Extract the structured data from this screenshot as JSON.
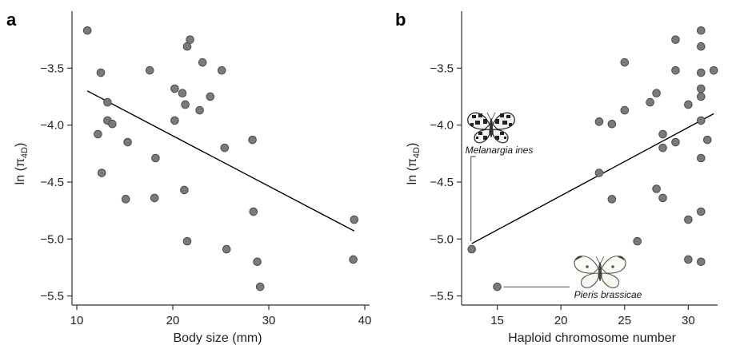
{
  "chart_data": [
    {
      "type": "scatter",
      "panel_label": "a",
      "xlabel": "Body size (mm)",
      "ylabel_base": "ln (π",
      "ylabel_sub": "4D",
      "ylabel_close": ")",
      "xlim": [
        9.5,
        40.5
      ],
      "ylim": [
        -5.58,
        -3.0
      ],
      "xticks": [
        10,
        20,
        30,
        40
      ],
      "yticks": [
        -3.5,
        -4.0,
        -4.5,
        -5.0,
        -5.5
      ],
      "xtick_labels": [
        "10",
        "20",
        "30",
        "40"
      ],
      "ytick_labels": [
        "−3.5",
        "−4.0",
        "−4.5",
        "−5.0",
        "−5.5"
      ],
      "trendline": {
        "x": [
          11.1,
          38.9
        ],
        "y": [
          -3.7,
          -4.93
        ]
      },
      "points": [
        {
          "x": 11.1,
          "y": -3.17
        },
        {
          "x": 12.5,
          "y": -3.54
        },
        {
          "x": 13.2,
          "y": -3.8
        },
        {
          "x": 13.2,
          "y": -3.96
        },
        {
          "x": 13.7,
          "y": -3.99
        },
        {
          "x": 12.2,
          "y": -4.08
        },
        {
          "x": 15.3,
          "y": -4.15
        },
        {
          "x": 12.6,
          "y": -4.42
        },
        {
          "x": 15.1,
          "y": -4.65
        },
        {
          "x": 17.6,
          "y": -3.52
        },
        {
          "x": 18.2,
          "y": -4.29
        },
        {
          "x": 18.1,
          "y": -4.64
        },
        {
          "x": 20.2,
          "y": -3.68
        },
        {
          "x": 20.2,
          "y": -3.96
        },
        {
          "x": 21.0,
          "y": -3.72
        },
        {
          "x": 21.3,
          "y": -3.82
        },
        {
          "x": 21.5,
          "y": -3.31
        },
        {
          "x": 21.8,
          "y": -3.25
        },
        {
          "x": 21.2,
          "y": -4.57
        },
        {
          "x": 21.5,
          "y": -5.02
        },
        {
          "x": 23.1,
          "y": -3.45
        },
        {
          "x": 22.8,
          "y": -3.87
        },
        {
          "x": 23.9,
          "y": -3.75
        },
        {
          "x": 25.1,
          "y": -3.52
        },
        {
          "x": 25.4,
          "y": -4.2
        },
        {
          "x": 25.6,
          "y": -5.09
        },
        {
          "x": 28.3,
          "y": -4.13
        },
        {
          "x": 28.4,
          "y": -4.76
        },
        {
          "x": 28.8,
          "y": -5.2
        },
        {
          "x": 29.1,
          "y": -5.42
        },
        {
          "x": 38.9,
          "y": -4.83
        },
        {
          "x": 38.8,
          "y": -5.18
        }
      ]
    },
    {
      "type": "scatter",
      "panel_label": "b",
      "xlabel": "Haploid chromosome number",
      "ylabel_base": "ln (π",
      "ylabel_sub": "4D",
      "ylabel_close": ")",
      "xlim": [
        12.2,
        32.3
      ],
      "ylim": [
        -5.58,
        -3.0
      ],
      "xticks": [
        15,
        20,
        25,
        30
      ],
      "yticks": [
        -3.5,
        -4.0,
        -4.5,
        -5.0,
        -5.5
      ],
      "xtick_labels": [
        "15",
        "20",
        "25",
        "30"
      ],
      "ytick_labels": [
        "−3.5",
        "−4.0",
        "−4.5",
        "−5.0",
        "−5.5"
      ],
      "trendline": {
        "x": [
          13.0,
          32.0
        ],
        "y": [
          -5.04,
          -3.9
        ]
      },
      "points": [
        {
          "x": 13.0,
          "y": -5.09
        },
        {
          "x": 15.0,
          "y": -5.42
        },
        {
          "x": 23.0,
          "y": -3.97
        },
        {
          "x": 23.0,
          "y": -4.42
        },
        {
          "x": 24.0,
          "y": -3.99
        },
        {
          "x": 24.0,
          "y": -4.65
        },
        {
          "x": 25.0,
          "y": -3.45
        },
        {
          "x": 25.0,
          "y": -3.87
        },
        {
          "x": 26.0,
          "y": -5.02
        },
        {
          "x": 27.0,
          "y": -3.8
        },
        {
          "x": 27.5,
          "y": -3.72
        },
        {
          "x": 27.5,
          "y": -4.56
        },
        {
          "x": 28.0,
          "y": -4.08
        },
        {
          "x": 28.0,
          "y": -4.2
        },
        {
          "x": 28.0,
          "y": -4.64
        },
        {
          "x": 29.0,
          "y": -3.25
        },
        {
          "x": 29.0,
          "y": -3.52
        },
        {
          "x": 29.0,
          "y": -4.15
        },
        {
          "x": 30.0,
          "y": -3.82
        },
        {
          "x": 30.0,
          "y": -4.83
        },
        {
          "x": 30.0,
          "y": -5.18
        },
        {
          "x": 31.0,
          "y": -3.17
        },
        {
          "x": 31.0,
          "y": -3.31
        },
        {
          "x": 31.0,
          "y": -3.54
        },
        {
          "x": 31.0,
          "y": -3.68
        },
        {
          "x": 31.0,
          "y": -3.75
        },
        {
          "x": 31.0,
          "y": -3.96
        },
        {
          "x": 31.0,
          "y": -4.29
        },
        {
          "x": 31.0,
          "y": -4.76
        },
        {
          "x": 31.0,
          "y": -5.2
        },
        {
          "x": 31.5,
          "y": -4.13
        },
        {
          "x": 32.0,
          "y": -3.52
        }
      ],
      "annotations": [
        {
          "label": "Melanargia ines",
          "x": 13.0,
          "y": -5.09,
          "icon": "checkered-butterfly-icon"
        },
        {
          "label": "Pieris brassicae",
          "x": 15.0,
          "y": -5.42,
          "icon": "white-butterfly-icon"
        }
      ]
    }
  ]
}
